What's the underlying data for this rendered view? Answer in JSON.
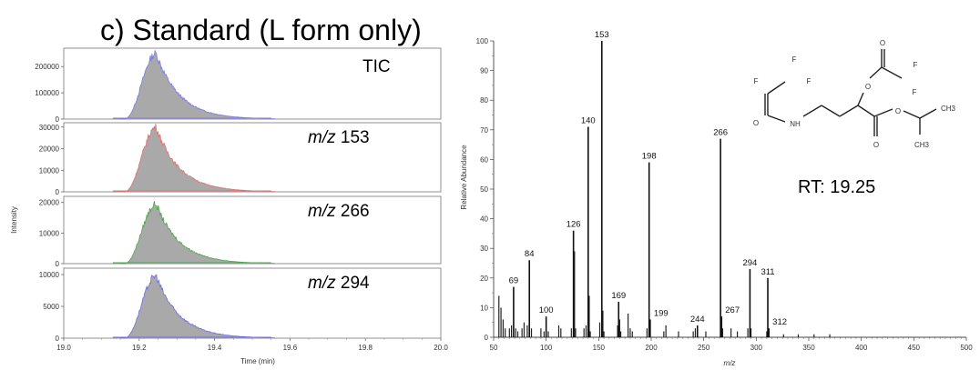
{
  "panel_title": "c) Standard (L form only)",
  "structure": {
    "atoms": [
      "F",
      "F",
      "F",
      "O",
      "NH",
      "O",
      "O",
      "F",
      "F",
      "O",
      "O",
      "CH3",
      "CH3"
    ]
  },
  "rt_label": "RT: 19.25",
  "chart_data": [
    {
      "type": "area",
      "xlabel": "Time (min)",
      "ylabel": "Intensity",
      "xlim": [
        19.0,
        20.0
      ],
      "x_ticks": [
        "19.0",
        "19.2",
        "19.4",
        "19.6",
        "19.8",
        "20.0"
      ],
      "peak": {
        "start": 19.16,
        "apex": 19.245,
        "end": 19.55
      },
      "traces": [
        {
          "label_prefix": "",
          "label_value": "TIC",
          "ylim": [
            0,
            270000
          ],
          "y_ticks": [
            {
              "v": 0,
              "t": "0"
            },
            {
              "v": 100000,
              "t": "100000"
            },
            {
              "v": 200000,
              "t": "200000"
            }
          ],
          "apex_value": 250000,
          "line_color": "#7a7adf",
          "fill_color": "#a9a9a9"
        },
        {
          "label_prefix": "m/z",
          "label_value": " 153",
          "ylim": [
            0,
            32000
          ],
          "y_ticks": [
            {
              "v": 0,
              "t": "0"
            },
            {
              "v": 10000,
              "t": "10000"
            },
            {
              "v": 20000,
              "t": "20000"
            },
            {
              "v": 30000,
              "t": "30000"
            }
          ],
          "apex_value": 30000,
          "line_color": "#e07070",
          "fill_color": "#a9a9a9"
        },
        {
          "label_prefix": "m/z",
          "label_value": " 266",
          "ylim": [
            0,
            22000
          ],
          "y_ticks": [
            {
              "v": 0,
              "t": "0"
            },
            {
              "v": 10000,
              "t": "10000"
            },
            {
              "v": 20000,
              "t": "20000"
            }
          ],
          "apex_value": 19500,
          "line_color": "#4ca84c",
          "fill_color": "#a9a9a9"
        },
        {
          "label_prefix": "m/z",
          "label_value": " 294",
          "ylim": [
            0,
            11000
          ],
          "y_ticks": [
            {
              "v": 0,
              "t": "0"
            },
            {
              "v": 5000,
              "t": "5000"
            },
            {
              "v": 10000,
              "t": "10000"
            }
          ],
          "apex_value": 9800,
          "line_color": "#6c6ce0",
          "fill_color": "#a9a9a9"
        }
      ]
    },
    {
      "type": "bar",
      "xlabel": "m/z",
      "ylabel": "Relative Abundance",
      "xlim": [
        50,
        500
      ],
      "ylim": [
        0,
        100
      ],
      "x_ticks": [
        50,
        100,
        150,
        200,
        250,
        300,
        350,
        400,
        450,
        500
      ],
      "y_ticks": [
        0,
        10,
        20,
        30,
        40,
        50,
        60,
        70,
        80,
        90,
        100
      ],
      "labeled_peaks": [
        {
          "mz": 69,
          "intensity": 17,
          "label": "69"
        },
        {
          "mz": 84,
          "intensity": 26,
          "label": "84"
        },
        {
          "mz": 100,
          "intensity": 7,
          "label": "100"
        },
        {
          "mz": 126,
          "intensity": 36,
          "label": "126"
        },
        {
          "mz": 140,
          "intensity": 71,
          "label": "140"
        },
        {
          "mz": 153,
          "intensity": 100,
          "label": "153"
        },
        {
          "mz": 169,
          "intensity": 12,
          "label": "169"
        },
        {
          "mz": 198,
          "intensity": 59,
          "label": "198"
        },
        {
          "mz": 199,
          "intensity": 6,
          "label": "199"
        },
        {
          "mz": 244,
          "intensity": 4,
          "label": "244"
        },
        {
          "mz": 266,
          "intensity": 67,
          "label": "266"
        },
        {
          "mz": 267,
          "intensity": 7,
          "label": "267"
        },
        {
          "mz": 294,
          "intensity": 23,
          "label": "294"
        },
        {
          "mz": 311,
          "intensity": 20,
          "label": "311"
        },
        {
          "mz": 312,
          "intensity": 3,
          "label": "312"
        }
      ],
      "other_peaks": [
        {
          "mz": 55,
          "intensity": 14
        },
        {
          "mz": 57,
          "intensity": 10
        },
        {
          "mz": 59,
          "intensity": 6
        },
        {
          "mz": 61,
          "intensity": 3
        },
        {
          "mz": 65,
          "intensity": 3
        },
        {
          "mz": 67,
          "intensity": 4
        },
        {
          "mz": 71,
          "intensity": 3
        },
        {
          "mz": 73,
          "intensity": 2
        },
        {
          "mz": 77,
          "intensity": 3
        },
        {
          "mz": 79,
          "intensity": 5
        },
        {
          "mz": 82,
          "intensity": 4
        },
        {
          "mz": 86,
          "intensity": 3
        },
        {
          "mz": 95,
          "intensity": 3
        },
        {
          "mz": 98,
          "intensity": 2
        },
        {
          "mz": 102,
          "intensity": 2
        },
        {
          "mz": 112,
          "intensity": 4
        },
        {
          "mz": 114,
          "intensity": 3
        },
        {
          "mz": 124,
          "intensity": 3
        },
        {
          "mz": 127,
          "intensity": 29
        },
        {
          "mz": 128,
          "intensity": 3
        },
        {
          "mz": 136,
          "intensity": 3
        },
        {
          "mz": 138,
          "intensity": 4
        },
        {
          "mz": 141,
          "intensity": 14
        },
        {
          "mz": 142,
          "intensity": 2
        },
        {
          "mz": 151,
          "intensity": 5
        },
        {
          "mz": 154,
          "intensity": 9
        },
        {
          "mz": 155,
          "intensity": 2
        },
        {
          "mz": 168,
          "intensity": 4
        },
        {
          "mz": 170,
          "intensity": 6
        },
        {
          "mz": 171,
          "intensity": 2
        },
        {
          "mz": 178,
          "intensity": 8
        },
        {
          "mz": 180,
          "intensity": 3
        },
        {
          "mz": 182,
          "intensity": 2
        },
        {
          "mz": 196,
          "intensity": 3
        },
        {
          "mz": 212,
          "intensity": 2
        },
        {
          "mz": 214,
          "intensity": 4
        },
        {
          "mz": 226,
          "intensity": 2
        },
        {
          "mz": 240,
          "intensity": 2
        },
        {
          "mz": 242,
          "intensity": 3
        },
        {
          "mz": 252,
          "intensity": 2
        },
        {
          "mz": 268,
          "intensity": 3
        },
        {
          "mz": 276,
          "intensity": 3
        },
        {
          "mz": 282,
          "intensity": 2
        },
        {
          "mz": 292,
          "intensity": 3
        },
        {
          "mz": 295,
          "intensity": 3
        },
        {
          "mz": 310,
          "intensity": 2
        },
        {
          "mz": 326,
          "intensity": 1
        },
        {
          "mz": 340,
          "intensity": 1
        },
        {
          "mz": 355,
          "intensity": 1
        },
        {
          "mz": 370,
          "intensity": 1
        }
      ]
    }
  ]
}
